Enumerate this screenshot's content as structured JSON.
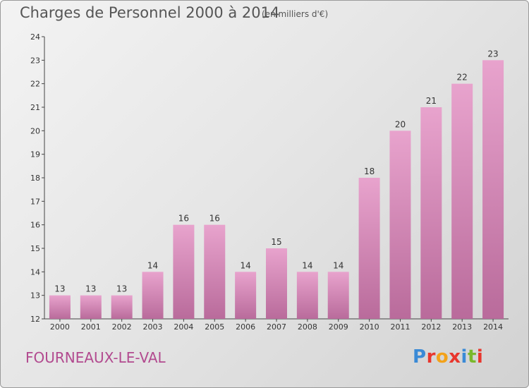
{
  "header": {
    "title": "Charges de Personnel 2000 à 2014",
    "subtitle": "(en milliers d'€)"
  },
  "footer": {
    "place": "FOURNEAUX-LE-VAL",
    "logo_text": "Proxiti",
    "logo_colors": [
      "#3a8ad6",
      "#e8362d",
      "#f3a21a",
      "#e8362d",
      "#3a8ad6",
      "#7ab82c",
      "#e8362d"
    ]
  },
  "colors": {
    "bar_top": "#e8a3cd",
    "bar_bottom": "#b96b9b",
    "axis": "#444444",
    "title": "#555555",
    "place": "#b24a8f"
  },
  "chart_data": {
    "type": "bar",
    "categories": [
      "2000",
      "2001",
      "2002",
      "2003",
      "2004",
      "2005",
      "2006",
      "2007",
      "2008",
      "2009",
      "2010",
      "2011",
      "2012",
      "2013",
      "2014"
    ],
    "values": [
      13,
      13,
      13,
      14,
      16,
      16,
      14,
      15,
      14,
      14,
      18,
      20,
      21,
      22,
      23
    ],
    "ylim": [
      12,
      24
    ],
    "yticks": [
      12,
      13,
      14,
      15,
      16,
      17,
      18,
      19,
      20,
      21,
      22,
      23,
      24
    ],
    "title": "Charges de Personnel 2000 à 2014",
    "subtitle": "(en milliers d'€)",
    "xlabel": "",
    "ylabel": "",
    "grid": false,
    "data_labels": true
  }
}
